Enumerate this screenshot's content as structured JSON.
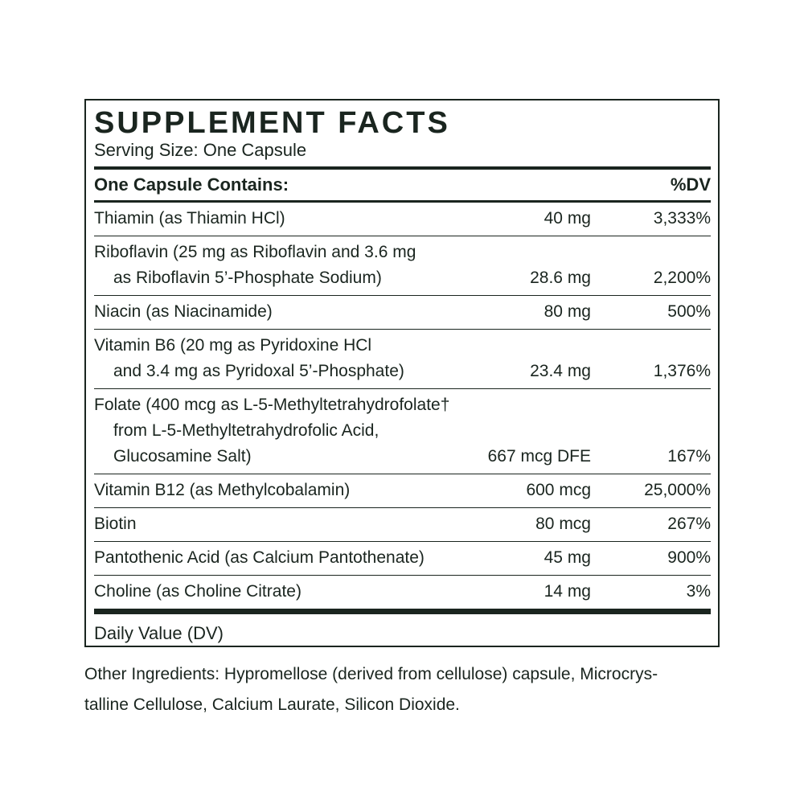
{
  "label": {
    "title": "SUPPLEMENT FACTS",
    "serving_size": "Serving Size: One Capsule",
    "header": {
      "left": "One Capsule Contains:",
      "right": "%DV"
    },
    "rows": [
      {
        "name_lines": [
          "Thiamin (as Thiamin HCl)"
        ],
        "amount": "40 mg",
        "dv": "3,333%"
      },
      {
        "name_lines": [
          "Riboflavin (25 mg as Riboflavin and 3.6 mg",
          "as Riboflavin 5’-Phosphate Sodium)"
        ],
        "amount": "28.6 mg",
        "dv": "2,200%"
      },
      {
        "name_lines": [
          "Niacin (as Niacinamide)"
        ],
        "amount": "80 mg",
        "dv": "500%"
      },
      {
        "name_lines": [
          "Vitamin B6 (20 mg as Pyridoxine HCl",
          "and 3.4 mg as Pyridoxal 5’-Phosphate)"
        ],
        "amount": "23.4 mg",
        "dv": "1,376%"
      },
      {
        "name_lines": [
          "Folate (400 mcg as L-5-Methyltetrahydrofolate†",
          "from L-5-Methyltetrahydrofolic Acid,",
          "Glucosamine Salt)"
        ],
        "amount": "667 mcg DFE",
        "dv": "167%"
      },
      {
        "name_lines": [
          "Vitamin B12 (as Methylcobalamin)"
        ],
        "amount": "600 mcg",
        "dv": "25,000%"
      },
      {
        "name_lines": [
          "Biotin"
        ],
        "amount": "80 mcg",
        "dv": "267%"
      },
      {
        "name_lines": [
          "Pantothenic Acid (as Calcium Pantothenate)"
        ],
        "amount": "45 mg",
        "dv": "900%"
      },
      {
        "name_lines": [
          "Choline (as Choline Citrate)"
        ],
        "amount": "14 mg",
        "dv": "3%"
      }
    ],
    "footnote": "Daily Value (DV)",
    "other_ingredients_lines": [
      "Other Ingredients: Hypromellose (derived from cellulose) capsule, Microcrys-",
      "talline Cellulose, Calcium Laurate, Silicon Dioxide."
    ],
    "colors": {
      "ink": "#1a251f",
      "background": "#ffffff"
    }
  }
}
